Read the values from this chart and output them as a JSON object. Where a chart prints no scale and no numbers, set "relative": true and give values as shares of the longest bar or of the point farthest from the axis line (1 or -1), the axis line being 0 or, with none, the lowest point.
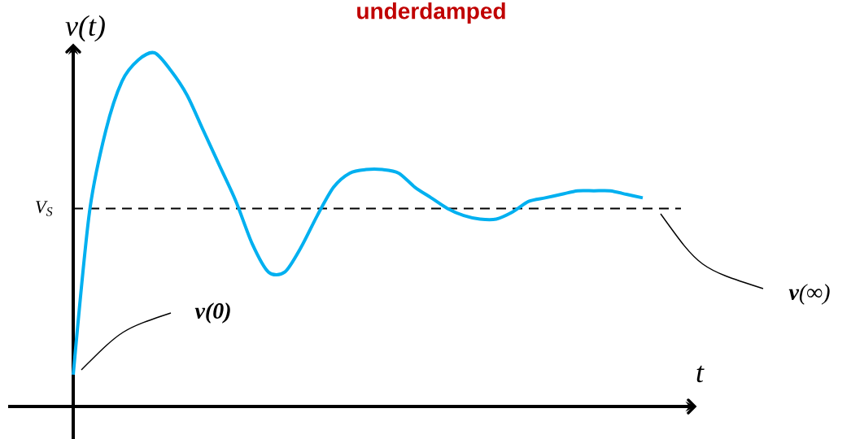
{
  "chart_data": {
    "type": "line",
    "title": "underdamped",
    "xlabel": "t",
    "ylabel": "v(t)",
    "relative": true,
    "marker": "none",
    "categories": [
      null,
      null,
      null,
      null,
      null,
      null,
      null,
      null,
      null,
      null,
      null,
      null,
      null,
      null,
      null,
      null,
      null,
      null,
      null,
      null,
      null,
      null,
      null,
      null,
      null,
      null,
      null,
      null,
      null,
      null,
      null,
      null,
      null,
      null,
      null,
      null
    ],
    "series": [
      {
        "color": "#00b0f0",
        "values": [
          0.09,
          0.55,
          0.78,
          0.92,
          0.98,
          1.0,
          0.95,
          0.88,
          0.78,
          0.68,
          0.58,
          0.46,
          0.38,
          0.38,
          0.45,
          0.54,
          0.62,
          0.66,
          0.67,
          0.67,
          0.66,
          0.62,
          0.59,
          0.56,
          0.54,
          0.53,
          0.53,
          0.55,
          0.58,
          0.59,
          0.6,
          0.61,
          0.61,
          0.61,
          0.6,
          0.59
        ]
      }
    ],
    "ref_lines": [
      {
        "axis": "y",
        "value": 0.56,
        "label": "*V*$_{S}$",
        "line_style": "dashed",
        "color": "#000000"
      }
    ],
    "annotations": [
      "**v(0)**",
      "**v**(∞)"
    ]
  }
}
